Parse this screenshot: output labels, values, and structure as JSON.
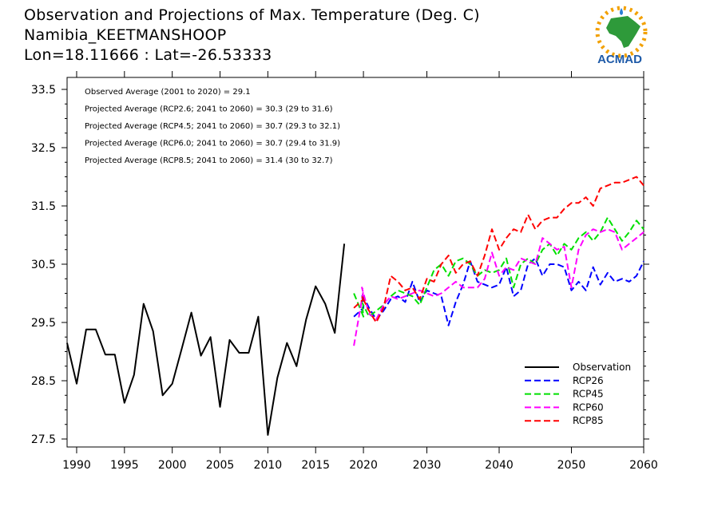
{
  "header": {
    "line1": "Observation and Projections of Max. Temperature (Deg. C)",
    "line2": "Namibia_KEETMANSHOOP",
    "line3": "Lon=18.11666 : Lat=-26.53333"
  },
  "logo": {
    "text": "ACMAD"
  },
  "chart_data": {
    "type": "line",
    "title": "Observation and Projections of Max. Temperature (Deg. C)",
    "xlim": [
      1989,
      2060
    ],
    "ylim": [
      27.3,
      33.7
    ],
    "x_ticks": [
      1990,
      1995,
      2000,
      2005,
      2010,
      2015,
      2020,
      2030,
      2040,
      2050,
      2060
    ],
    "y_ticks": [
      27.5,
      28.5,
      29.5,
      30.5,
      31.5,
      32.5,
      33.5
    ],
    "grid": false,
    "legend_position": "bottom-right",
    "annotations": [
      "Observed Average (2001 to 2020) = 29.1",
      "Projected Average (RCP2.6; 2041 to 2060) = 30.3 (29 to 31.6)",
      "Projected Average (RCP4.5; 2041 to 2060) = 30.7 (29.3 to 32.1)",
      "Projected Average (RCP6.0; 2041 to 2060) = 30.7 (29.4 to 31.9)",
      "Projected Average (RCP8.5; 2041 to 2060) = 31.4 (30 to 32.7)"
    ],
    "series": [
      {
        "name": "Observation",
        "color": "#000000",
        "dashed": false,
        "x": [
          1989,
          1990,
          1991,
          1992,
          1993,
          1994,
          1995,
          1996,
          1997,
          1998,
          1999,
          2000,
          2001,
          2002,
          2003,
          2004,
          2005,
          2006,
          2007,
          2008,
          2009,
          2010,
          2011,
          2012,
          2013,
          2014,
          2015,
          2016,
          2017,
          2018,
          2019
        ],
        "y": [
          29.15,
          28.45,
          29.38,
          29.38,
          28.95,
          28.95,
          28.12,
          28.6,
          29.82,
          29.35,
          28.25,
          28.45,
          29.05,
          29.67,
          28.93,
          29.25,
          28.05,
          29.2,
          28.98,
          28.98,
          29.6,
          27.57,
          28.55,
          29.15,
          28.75,
          29.55,
          30.12,
          29.82,
          29.32,
          30.85,
          null
        ]
      },
      {
        "name": "RCP26",
        "color": "#0000ff",
        "dashed": true,
        "x": [
          2019,
          2020,
          2021,
          2022,
          2023,
          2024,
          2025,
          2026,
          2027,
          2028,
          2029,
          2030,
          2031,
          2032,
          2033,
          2034,
          2035,
          2036,
          2037,
          2038,
          2039,
          2040,
          2041,
          2042,
          2043,
          2044,
          2045,
          2046,
          2047,
          2048,
          2049,
          2050,
          2051,
          2052,
          2053,
          2054,
          2055,
          2056,
          2057,
          2058,
          2059,
          2060
        ],
        "y": [
          29.6,
          29.75,
          30.0,
          29.75,
          29.55,
          29.7,
          29.9,
          29.95,
          29.85,
          30.2,
          29.85,
          30.05,
          30.0,
          29.95,
          29.45,
          29.85,
          30.15,
          30.55,
          30.2,
          30.15,
          30.1,
          30.15,
          30.45,
          29.95,
          30.05,
          30.5,
          30.6,
          30.3,
          30.5,
          30.5,
          30.45,
          30.05,
          30.2,
          30.05,
          30.45,
          30.15,
          30.35,
          30.2,
          30.25,
          30.2,
          30.3,
          30.55
        ]
      },
      {
        "name": "RCP45",
        "color": "#00e000",
        "dashed": true,
        "x": [
          2019,
          2020,
          2021,
          2022,
          2023,
          2024,
          2025,
          2026,
          2027,
          2028,
          2029,
          2030,
          2031,
          2032,
          2033,
          2034,
          2035,
          2036,
          2037,
          2038,
          2039,
          2040,
          2041,
          2042,
          2043,
          2044,
          2045,
          2046,
          2047,
          2048,
          2049,
          2050,
          2051,
          2052,
          2053,
          2054,
          2055,
          2056,
          2057,
          2058,
          2059,
          2060
        ],
        "y": [
          30.0,
          29.6,
          29.85,
          29.6,
          29.7,
          29.8,
          29.95,
          30.05,
          30.0,
          29.95,
          29.8,
          30.1,
          30.4,
          30.5,
          30.3,
          30.55,
          30.6,
          30.5,
          30.3,
          30.4,
          30.35,
          30.4,
          30.6,
          30.1,
          30.5,
          30.6,
          30.5,
          30.75,
          30.85,
          30.65,
          30.85,
          30.75,
          30.95,
          31.05,
          30.9,
          31.05,
          31.3,
          31.1,
          30.9,
          31.05,
          31.25,
          31.1
        ]
      },
      {
        "name": "RCP60",
        "color": "#ff00ff",
        "dashed": true,
        "x": [
          2019,
          2020,
          2021,
          2022,
          2023,
          2024,
          2025,
          2026,
          2027,
          2028,
          2029,
          2030,
          2031,
          2032,
          2033,
          2034,
          2035,
          2036,
          2037,
          2038,
          2039,
          2040,
          2041,
          2042,
          2043,
          2044,
          2045,
          2046,
          2047,
          2048,
          2049,
          2050,
          2051,
          2052,
          2053,
          2054,
          2055,
          2056,
          2057,
          2058,
          2059,
          2060
        ],
        "y": [
          29.1,
          30.05,
          30.1,
          29.65,
          29.55,
          29.8,
          29.95,
          29.9,
          29.95,
          30.0,
          30.05,
          30.0,
          29.95,
          30.0,
          30.1,
          30.2,
          30.1,
          30.1,
          30.1,
          30.25,
          30.7,
          30.3,
          30.45,
          30.4,
          30.6,
          30.55,
          30.5,
          30.95,
          30.85,
          30.75,
          30.8,
          30.1,
          30.75,
          31.0,
          31.1,
          31.05,
          31.1,
          31.05,
          30.75,
          30.85,
          30.95,
          31.05
        ]
      },
      {
        "name": "RCP85",
        "color": "#ff0000",
        "dashed": true,
        "x": [
          2019,
          2020,
          2021,
          2022,
          2023,
          2024,
          2025,
          2026,
          2027,
          2028,
          2029,
          2030,
          2031,
          2032,
          2033,
          2034,
          2035,
          2036,
          2037,
          2038,
          2039,
          2040,
          2041,
          2042,
          2043,
          2044,
          2045,
          2046,
          2047,
          2048,
          2049,
          2050,
          2051,
          2052,
          2053,
          2054,
          2055,
          2056,
          2057,
          2058,
          2059,
          2060
        ],
        "y": [
          29.75,
          29.9,
          29.95,
          29.7,
          29.5,
          29.75,
          30.3,
          30.2,
          30.05,
          30.1,
          29.9,
          30.25,
          30.2,
          30.5,
          30.65,
          30.35,
          30.5,
          30.55,
          30.3,
          30.65,
          31.1,
          30.75,
          30.95,
          31.1,
          31.05,
          31.35,
          31.1,
          31.25,
          31.3,
          31.3,
          31.45,
          31.55,
          31.55,
          31.65,
          31.5,
          31.8,
          31.85,
          31.9,
          31.9,
          31.95,
          32.0,
          31.85
        ]
      }
    ]
  }
}
